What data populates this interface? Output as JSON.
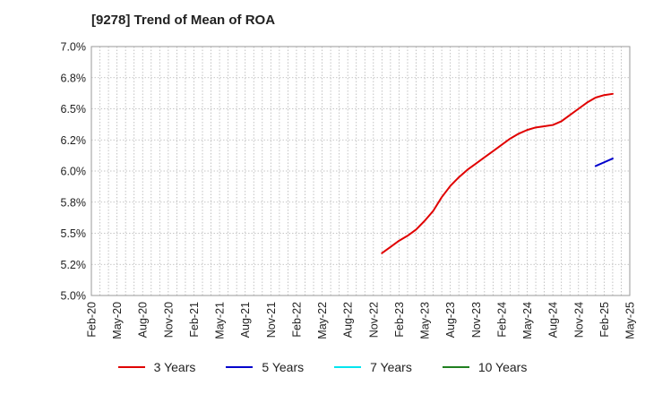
{
  "chart_data": {
    "type": "line",
    "title": "[9278]  Trend of Mean of ROA",
    "xlabel": "",
    "ylabel": "",
    "x_ticks": [
      "Feb-20",
      "May-20",
      "Aug-20",
      "Nov-20",
      "Feb-21",
      "May-21",
      "Aug-21",
      "Nov-21",
      "Feb-22",
      "May-22",
      "Aug-22",
      "Nov-22",
      "Feb-23",
      "May-23",
      "Aug-23",
      "Nov-23",
      "Feb-24",
      "May-24",
      "Aug-24",
      "Nov-24",
      "Feb-25",
      "May-25"
    ],
    "y_ticks": [
      "5.0%",
      "5.2%",
      "5.5%",
      "5.8%",
      "6.0%",
      "6.2%",
      "6.5%",
      "6.8%",
      "7.0%"
    ],
    "ylim": [
      5.0,
      7.0
    ],
    "grid": true,
    "legend_position": "bottom",
    "series": [
      {
        "name": "3 Years",
        "color": "#e00000",
        "points": [
          [
            "Dec-22",
            5.34
          ],
          [
            "Jan-23",
            5.39
          ],
          [
            "Feb-23",
            5.44
          ],
          [
            "Mar-23",
            5.48
          ],
          [
            "Apr-23",
            5.53
          ],
          [
            "May-23",
            5.6
          ],
          [
            "Jun-23",
            5.68
          ],
          [
            "Jul-23",
            5.79
          ],
          [
            "Aug-23",
            5.88
          ],
          [
            "Sep-23",
            5.95
          ],
          [
            "Oct-23",
            6.01
          ],
          [
            "Nov-23",
            6.06
          ],
          [
            "Dec-23",
            6.11
          ],
          [
            "Jan-24",
            6.16
          ],
          [
            "Feb-24",
            6.21
          ],
          [
            "Mar-24",
            6.26
          ],
          [
            "Apr-24",
            6.3
          ],
          [
            "May-24",
            6.33
          ],
          [
            "Jun-24",
            6.35
          ],
          [
            "Jul-24",
            6.36
          ],
          [
            "Aug-24",
            6.37
          ],
          [
            "Sep-24",
            6.4
          ],
          [
            "Oct-24",
            6.45
          ],
          [
            "Nov-24",
            6.5
          ],
          [
            "Dec-24",
            6.55
          ],
          [
            "Jan-25",
            6.59
          ],
          [
            "Feb-25",
            6.61
          ],
          [
            "Mar-25",
            6.62
          ]
        ]
      },
      {
        "name": "5 Years",
        "color": "#0000cc",
        "points": [
          [
            "Jan-25",
            6.04
          ],
          [
            "Feb-25",
            6.07
          ],
          [
            "Mar-25",
            6.1
          ]
        ]
      },
      {
        "name": "7 Years",
        "color": "#00e5ee",
        "points": []
      },
      {
        "name": "10 Years",
        "color": "#208020",
        "points": []
      }
    ]
  },
  "legend": {
    "items": [
      {
        "label": "3 Years",
        "color": "#e00000"
      },
      {
        "label": "5 Years",
        "color": "#0000cc"
      },
      {
        "label": "7 Years",
        "color": "#00e5ee"
      },
      {
        "label": "10 Years",
        "color": "#208020"
      }
    ]
  }
}
